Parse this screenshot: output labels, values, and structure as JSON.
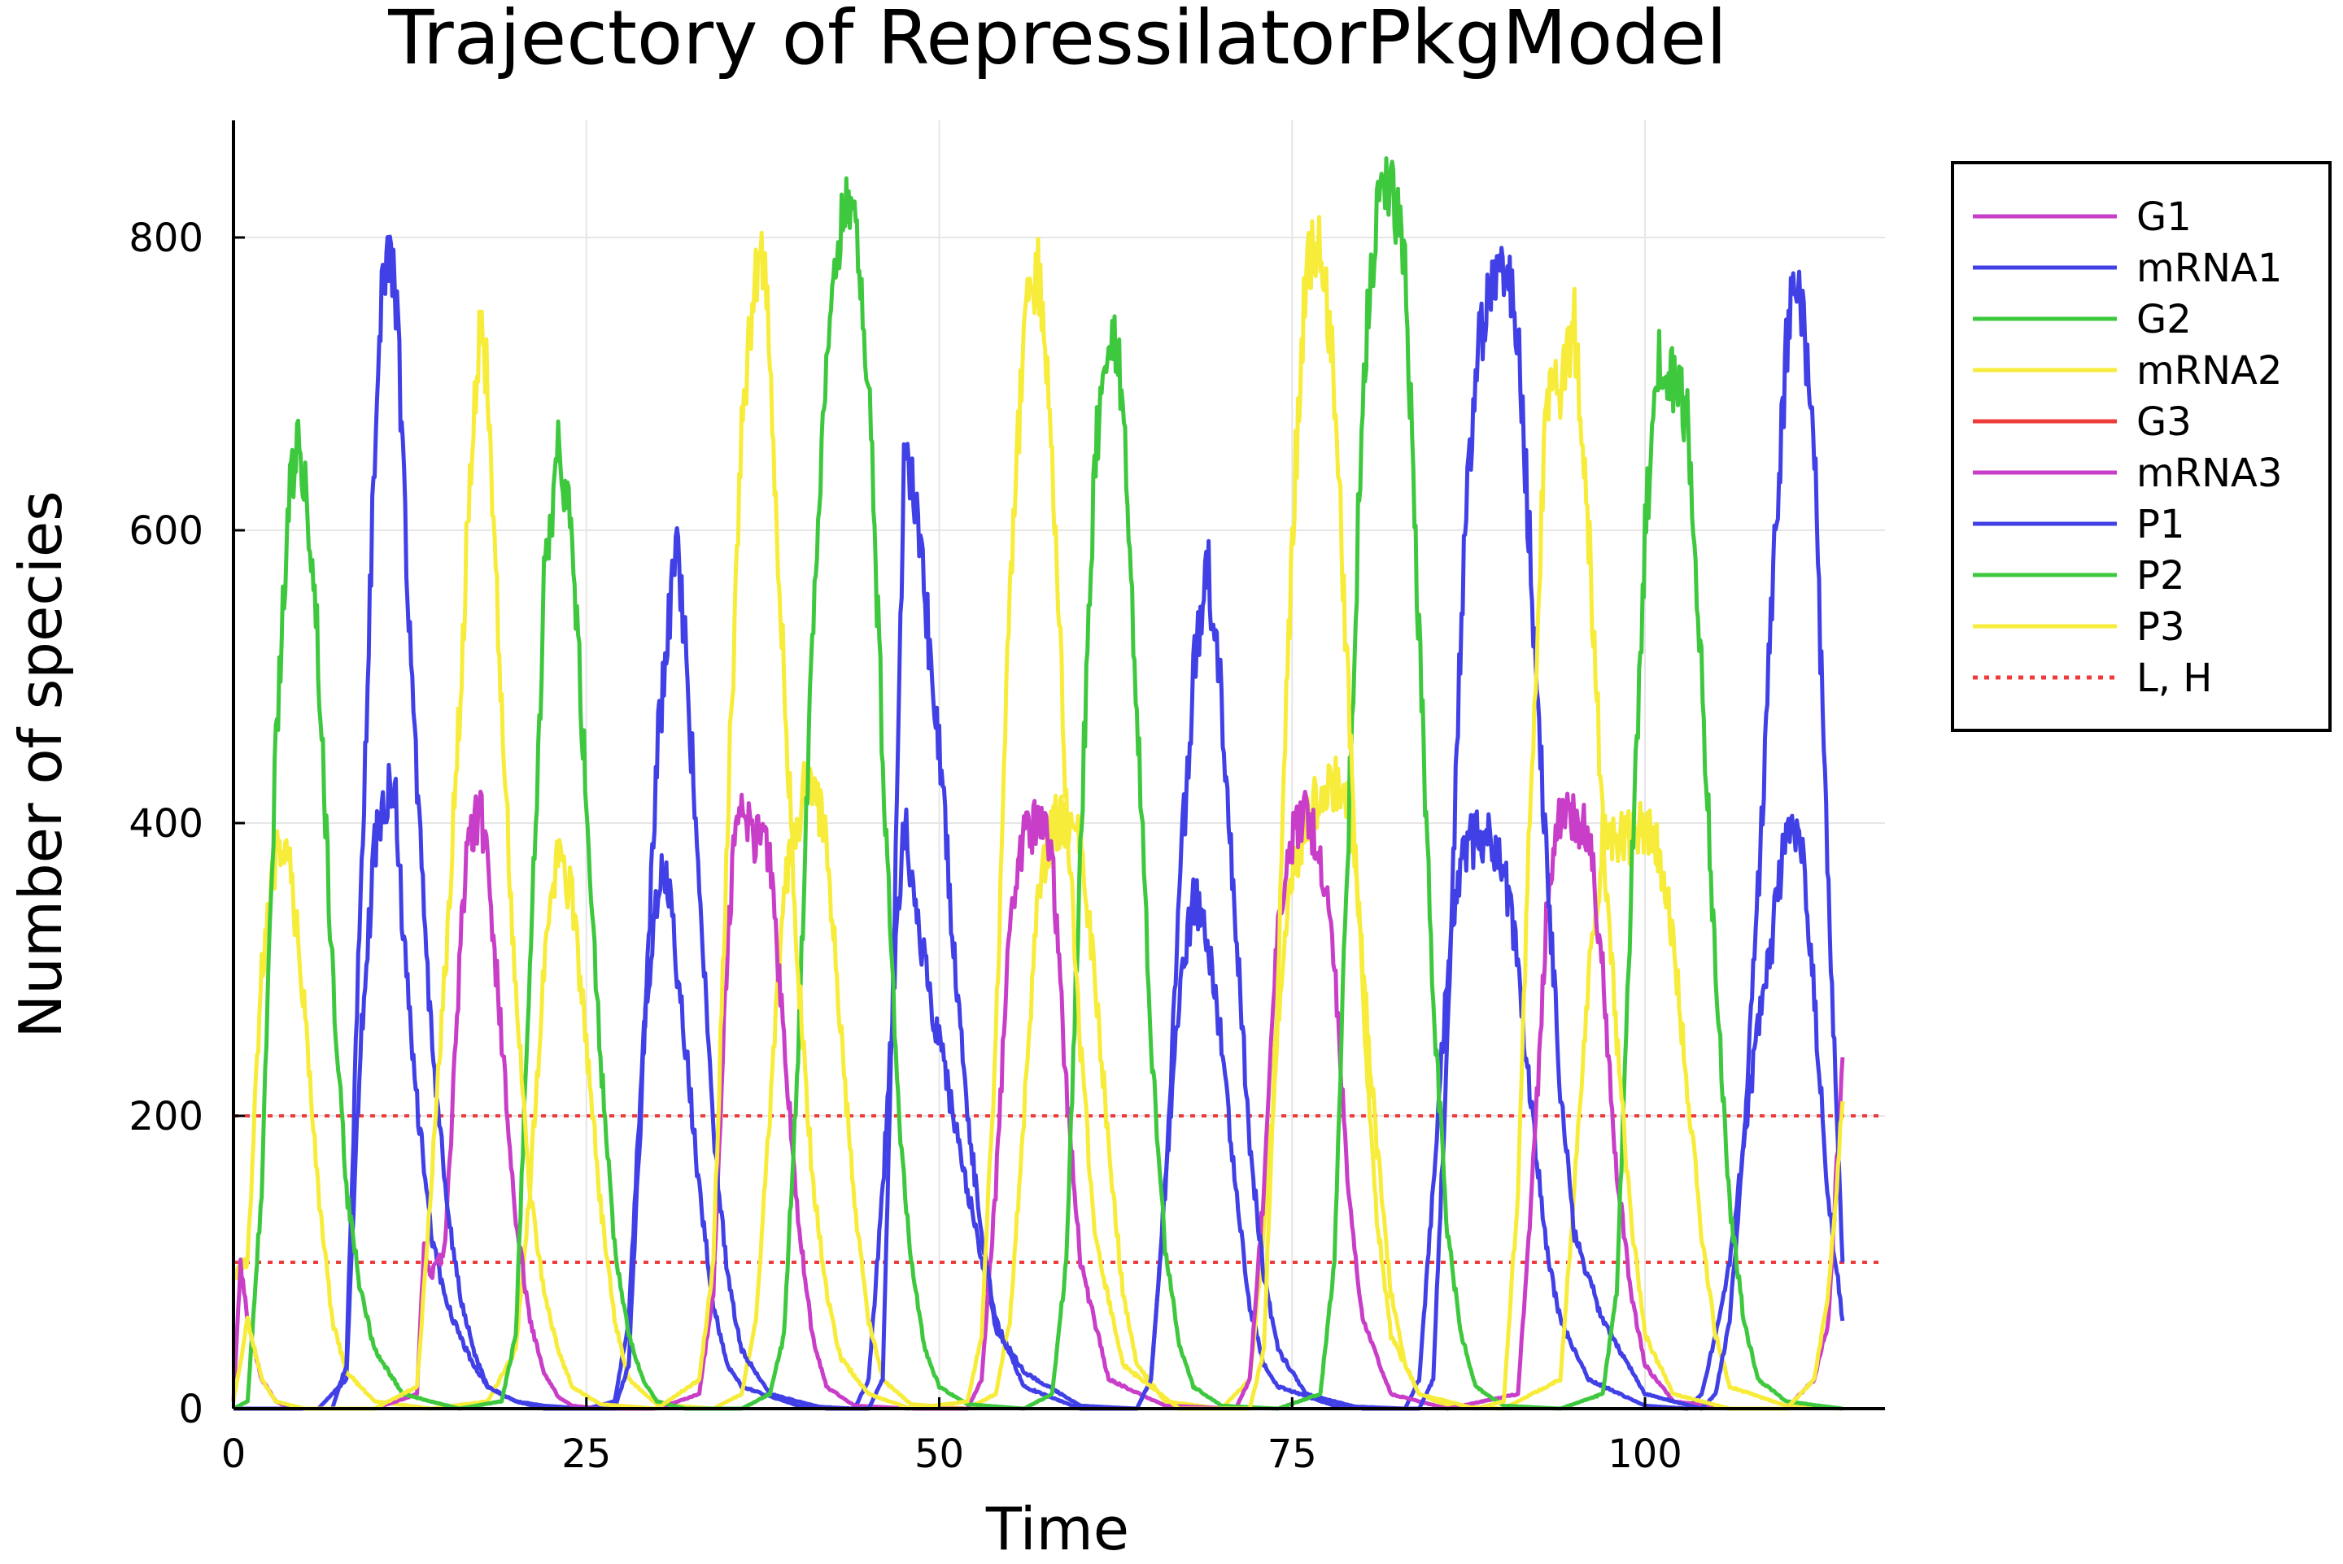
{
  "chart_data": {
    "type": "line",
    "title": "Trajectory of RepressilatorPkgModel",
    "xlabel": "Time",
    "ylabel": "Number of species",
    "xlim": [
      0,
      117
    ],
    "ylim": [
      0,
      880
    ],
    "xticks": [
      0,
      25,
      50,
      75,
      100
    ],
    "yticks": [
      0,
      200,
      400,
      600,
      800
    ],
    "grid": true,
    "legend_position": "outer-top-right",
    "series": [
      {
        "name": "G1",
        "color": "#c83ec8",
        "style": "solid",
        "x": [],
        "y": []
      },
      {
        "name": "mRNA1",
        "color": "#4040e6",
        "style": "solid",
        "x": [
          0,
          6,
          8,
          9,
          10,
          10.5,
          11,
          11.5,
          12,
          13,
          14,
          15,
          16,
          17,
          18,
          20,
          22,
          25,
          27,
          28,
          29,
          30,
          30.5,
          31,
          32,
          33,
          34,
          35,
          36,
          40,
          44,
          45,
          46,
          47,
          47.5,
          48,
          49,
          50,
          51,
          52,
          53,
          54,
          56,
          60,
          64,
          65,
          66,
          67,
          68,
          68.5,
          69,
          70,
          71,
          72,
          73,
          74,
          78,
          83,
          84,
          85,
          86,
          87,
          88,
          89,
          90,
          91,
          92,
          93,
          94,
          96,
          100,
          103,
          104,
          105,
          106,
          107,
          108,
          109,
          110,
          110.5,
          111,
          112,
          113,
          114
        ],
        "y": [
          0,
          0,
          20,
          250,
          380,
          410,
          425,
          410,
          330,
          210,
          120,
          75,
          50,
          30,
          15,
          5,
          2,
          0,
          5,
          60,
          250,
          350,
          370,
          340,
          250,
          150,
          70,
          30,
          15,
          2,
          0,
          20,
          150,
          330,
          400,
          370,
          300,
          250,
          200,
          150,
          100,
          55,
          25,
          2,
          0,
          20,
          150,
          280,
          350,
          340,
          320,
          250,
          150,
          70,
          30,
          15,
          2,
          0,
          20,
          150,
          300,
          380,
          390,
          395,
          370,
          300,
          200,
          110,
          60,
          20,
          2,
          0,
          10,
          50,
          100,
          180,
          260,
          320,
          400,
          405,
          390,
          280,
          140,
          60
        ]
      },
      {
        "name": "G2",
        "color": "#3ec83e",
        "style": "solid",
        "x": [],
        "y": []
      },
      {
        "name": "mRNA2",
        "color": "#f7ec3a",
        "style": "solid",
        "x": [
          0,
          1,
          2,
          3,
          4,
          5,
          6,
          7,
          8,
          10,
          14,
          18,
          20,
          21,
          22,
          23,
          24,
          25,
          26,
          27,
          28,
          30,
          34,
          36,
          37,
          38,
          39,
          40,
          40.5,
          41,
          42,
          43,
          44,
          45,
          46,
          48,
          52,
          54,
          55,
          56,
          57,
          58,
          59,
          60,
          61,
          62,
          63,
          64,
          66,
          70,
          72,
          73,
          74,
          75,
          76,
          77,
          78,
          79,
          79.5,
          80,
          81,
          82,
          83,
          84,
          86,
          90,
          94,
          95,
          96,
          97,
          98,
          99,
          100,
          101,
          102,
          103,
          104,
          105,
          106,
          110,
          114
        ],
        "y": [
          90,
          100,
          300,
          380,
          370,
          280,
          150,
          60,
          25,
          5,
          0,
          5,
          40,
          150,
          300,
          380,
          350,
          250,
          140,
          60,
          20,
          3,
          0,
          10,
          60,
          200,
          350,
          400,
          430,
          430,
          390,
          260,
          140,
          60,
          20,
          3,
          0,
          10,
          60,
          200,
          350,
          400,
          400,
          390,
          300,
          180,
          80,
          30,
          5,
          0,
          20,
          120,
          260,
          370,
          400,
          420,
          430,
          410,
          380,
          300,
          180,
          80,
          30,
          10,
          2,
          0,
          20,
          150,
          290,
          390,
          390,
          390,
          400,
          380,
          320,
          220,
          120,
          50,
          15,
          2,
          0
        ]
      },
      {
        "name": "G3",
        "color": "#ee3b3b",
        "style": "solid",
        "x": [],
        "y": []
      },
      {
        "name": "mRNA3",
        "color": "#c83ec8",
        "style": "solid",
        "x": [
          0,
          0.5,
          1,
          2,
          3,
          4,
          6,
          10,
          13,
          13.5,
          14,
          15,
          16,
          16.5,
          17,
          17.5,
          18,
          19,
          20,
          21,
          22,
          23,
          24,
          26,
          30,
          33,
          34,
          35,
          35.5,
          36,
          37,
          38,
          39,
          40,
          41,
          42,
          44,
          48,
          52,
          53,
          54,
          55,
          56,
          57,
          58,
          59,
          60,
          62,
          66,
          71,
          72,
          73,
          74,
          75,
          76,
          77,
          78,
          79,
          80,
          82,
          86,
          91,
          92,
          93,
          94,
          95,
          96,
          97,
          98,
          99,
          100,
          102,
          106,
          110,
          112,
          113,
          114
        ],
        "y": [
          5,
          100,
          60,
          20,
          5,
          0,
          0,
          0,
          10,
          110,
          90,
          110,
          300,
          380,
          400,
          410,
          380,
          250,
          130,
          60,
          25,
          8,
          2,
          0,
          0,
          10,
          80,
          320,
          390,
          400,
          390,
          380,
          250,
          130,
          50,
          15,
          2,
          0,
          0,
          20,
          150,
          330,
          390,
          400,
          380,
          220,
          100,
          20,
          2,
          0,
          20,
          150,
          330,
          390,
          410,
          380,
          300,
          150,
          60,
          10,
          0,
          10,
          150,
          330,
          410,
          400,
          400,
          300,
          160,
          80,
          30,
          5,
          0,
          0,
          20,
          60,
          240
        ]
      },
      {
        "name": "P1",
        "color": "#4040e6",
        "style": "solid",
        "x": [
          0,
          7,
          8,
          9,
          10,
          10.5,
          11,
          11.5,
          12,
          13,
          14,
          15,
          16,
          17,
          18,
          20,
          22,
          27,
          28,
          29,
          30,
          31,
          31.5,
          32,
          33,
          34,
          35,
          36,
          38,
          42,
          45,
          46,
          47,
          47.5,
          48,
          49,
          50,
          51,
          52,
          53,
          54,
          56,
          60,
          64,
          65,
          66,
          67,
          68,
          69,
          70,
          71,
          72,
          73,
          74,
          76,
          80,
          84,
          85,
          86,
          87,
          88,
          89,
          90,
          91,
          92,
          93,
          94,
          95,
          97,
          100,
          104,
          105,
          106,
          107,
          108,
          109,
          110,
          110.5,
          111,
          112,
          113,
          114
        ],
        "y": [
          0,
          0,
          30,
          350,
          650,
          760,
          780,
          760,
          650,
          420,
          260,
          150,
          80,
          40,
          15,
          5,
          0,
          0,
          30,
          230,
          450,
          560,
          580,
          520,
          360,
          190,
          90,
          40,
          10,
          0,
          0,
          20,
          400,
          650,
          640,
          550,
          450,
          320,
          200,
          120,
          60,
          15,
          0,
          0,
          20,
          150,
          350,
          500,
          580,
          480,
          330,
          180,
          90,
          40,
          10,
          0,
          0,
          20,
          250,
          550,
          720,
          760,
          780,
          740,
          560,
          380,
          220,
          120,
          60,
          10,
          0,
          10,
          60,
          180,
          350,
          550,
          720,
          790,
          760,
          650,
          350,
          100
        ]
      },
      {
        "name": "P2",
        "color": "#3ec83e",
        "style": "solid",
        "x": [
          0,
          1,
          2,
          3,
          4,
          4.5,
          5,
          6,
          7,
          8,
          9,
          10,
          12,
          16,
          19,
          20,
          21,
          22,
          23,
          24,
          25,
          26,
          27,
          28,
          29,
          30,
          32,
          36,
          38,
          39,
          40,
          41,
          42,
          43,
          44,
          45,
          46,
          47,
          48,
          49,
          50,
          52,
          56,
          58,
          59,
          60,
          61,
          62,
          63,
          64,
          65,
          66,
          67,
          68,
          70,
          74,
          77,
          78,
          79,
          80,
          81,
          82,
          83,
          84,
          85,
          86,
          87,
          88,
          90,
          94,
          97,
          98,
          99,
          100,
          101,
          102,
          103,
          104,
          105,
          106,
          107,
          108,
          110,
          114
        ],
        "y": [
          0,
          5,
          150,
          450,
          630,
          660,
          640,
          520,
          300,
          150,
          80,
          40,
          10,
          0,
          5,
          50,
          300,
          560,
          650,
          600,
          420,
          240,
          110,
          50,
          20,
          5,
          0,
          0,
          10,
          50,
          240,
          520,
          720,
          810,
          830,
          700,
          450,
          220,
          100,
          40,
          15,
          3,
          0,
          10,
          100,
          380,
          650,
          740,
          700,
          480,
          250,
          110,
          45,
          15,
          2,
          0,
          10,
          100,
          400,
          700,
          820,
          840,
          780,
          530,
          280,
          120,
          50,
          15,
          2,
          0,
          10,
          80,
          350,
          600,
          720,
          700,
          680,
          500,
          300,
          140,
          60,
          20,
          5,
          0
        ]
      },
      {
        "name": "P3",
        "color": "#f7ec3a",
        "style": "solid",
        "x": [
          0,
          1,
          2,
          3,
          5,
          10,
          13,
          14,
          15,
          16,
          17,
          17.5,
          18,
          19,
          20,
          21,
          22,
          23,
          24,
          26,
          30,
          33,
          34,
          35,
          36,
          37,
          37.5,
          38,
          39,
          40,
          41,
          42,
          43,
          45,
          48,
          52,
          53,
          54,
          55,
          56,
          57,
          58,
          59,
          60,
          61,
          63,
          67,
          72,
          73,
          74,
          75,
          76,
          77,
          78,
          79,
          80,
          81,
          82,
          84,
          88,
          90,
          91,
          92,
          93,
          94,
          95,
          96,
          97,
          98,
          99,
          100,
          102,
          106,
          110,
          112,
          113,
          114
        ],
        "y": [
          5,
          60,
          20,
          5,
          0,
          0,
          15,
          150,
          300,
          480,
          680,
          740,
          700,
          480,
          280,
          150,
          80,
          40,
          15,
          3,
          0,
          20,
          100,
          400,
          680,
          770,
          790,
          720,
          500,
          300,
          160,
          80,
          35,
          10,
          0,
          5,
          50,
          250,
          550,
          740,
          780,
          650,
          420,
          250,
          120,
          30,
          0,
          0,
          40,
          300,
          600,
          780,
          800,
          700,
          480,
          280,
          130,
          50,
          10,
          0,
          5,
          150,
          450,
          680,
          700,
          740,
          600,
          400,
          250,
          130,
          50,
          10,
          0,
          0,
          20,
          80,
          210
        ]
      },
      {
        "name": "L, H",
        "color": "#ee3b3b",
        "style": "dotted",
        "x": [
          0,
          117
        ],
        "y": [
          100,
          200
        ]
      }
    ]
  }
}
